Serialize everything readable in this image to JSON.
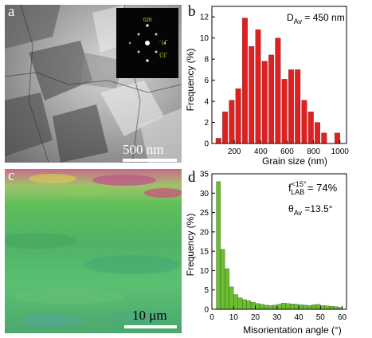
{
  "panels": {
    "a": {
      "label": "a",
      "scale_bar": "500 nm",
      "saed_labels": [
        "020",
        "ˉ11̅",
        "Ű1̅̅"
      ]
    },
    "b": {
      "label": "b"
    },
    "c": {
      "label": "c",
      "scale_bar": "10 μm"
    },
    "d": {
      "label": "d"
    }
  },
  "chart_data": [
    {
      "type": "bar",
      "panel": "b",
      "xlabel": "Grain size (nm)",
      "ylabel": "Frequency (%)",
      "xlim": [
        30,
        1050
      ],
      "ylim": [
        0,
        13
      ],
      "xticks": [
        200,
        400,
        600,
        800,
        1000
      ],
      "yticks": [
        0,
        2,
        4,
        6,
        8,
        10,
        12
      ],
      "annotation": {
        "main": "D",
        "sub": "Av",
        "rest": " = 450 nm"
      },
      "bar_width": 40,
      "bar_color": "#e02020",
      "x": [
        80,
        130,
        180,
        230,
        280,
        330,
        380,
        430,
        480,
        530,
        580,
        630,
        680,
        730,
        780,
        830,
        880,
        930,
        980
      ],
      "values": [
        0.5,
        3.0,
        4.1,
        5.2,
        11.9,
        9.2,
        10.8,
        7.8,
        8.4,
        10.0,
        6.1,
        7.0,
        7.0,
        4.1,
        3.0,
        2.0,
        1.0,
        0,
        1.0
      ]
    },
    {
      "type": "bar",
      "panel": "d",
      "xlabel": "Misorientation angle (°)",
      "ylabel": "Frequency (%)",
      "xlim": [
        0,
        62
      ],
      "ylim": [
        0,
        35
      ],
      "xticks": [
        0,
        10,
        20,
        30,
        40,
        50,
        60
      ],
      "yticks": [
        0,
        5,
        10,
        15,
        20,
        25,
        30,
        35
      ],
      "annotation_f": {
        "main": "f",
        "sup": "<15°",
        "sub": "LAB",
        "rest": " = 74%"
      },
      "annotation_theta": {
        "main": "θ",
        "sub": "Av",
        "rest": " =13.5°"
      },
      "bar_width": 1.95,
      "bar_color": "#6abf2e",
      "x": [
        3,
        5,
        7,
        9,
        11,
        13,
        15,
        17,
        19,
        21,
        23,
        25,
        27,
        29,
        31,
        33,
        35,
        37,
        39,
        41,
        43,
        45,
        47,
        49,
        51,
        53,
        55,
        57,
        59
      ],
      "values": [
        33.0,
        15.5,
        10.5,
        5.8,
        3.8,
        3.0,
        2.5,
        2.2,
        1.8,
        1.5,
        1.3,
        1.1,
        1.0,
        1.1,
        1.3,
        1.6,
        1.5,
        1.4,
        1.3,
        1.2,
        1.1,
        1.0,
        1.2,
        1.3,
        1.0,
        0.9,
        0.8,
        0.7,
        0.5
      ]
    }
  ]
}
